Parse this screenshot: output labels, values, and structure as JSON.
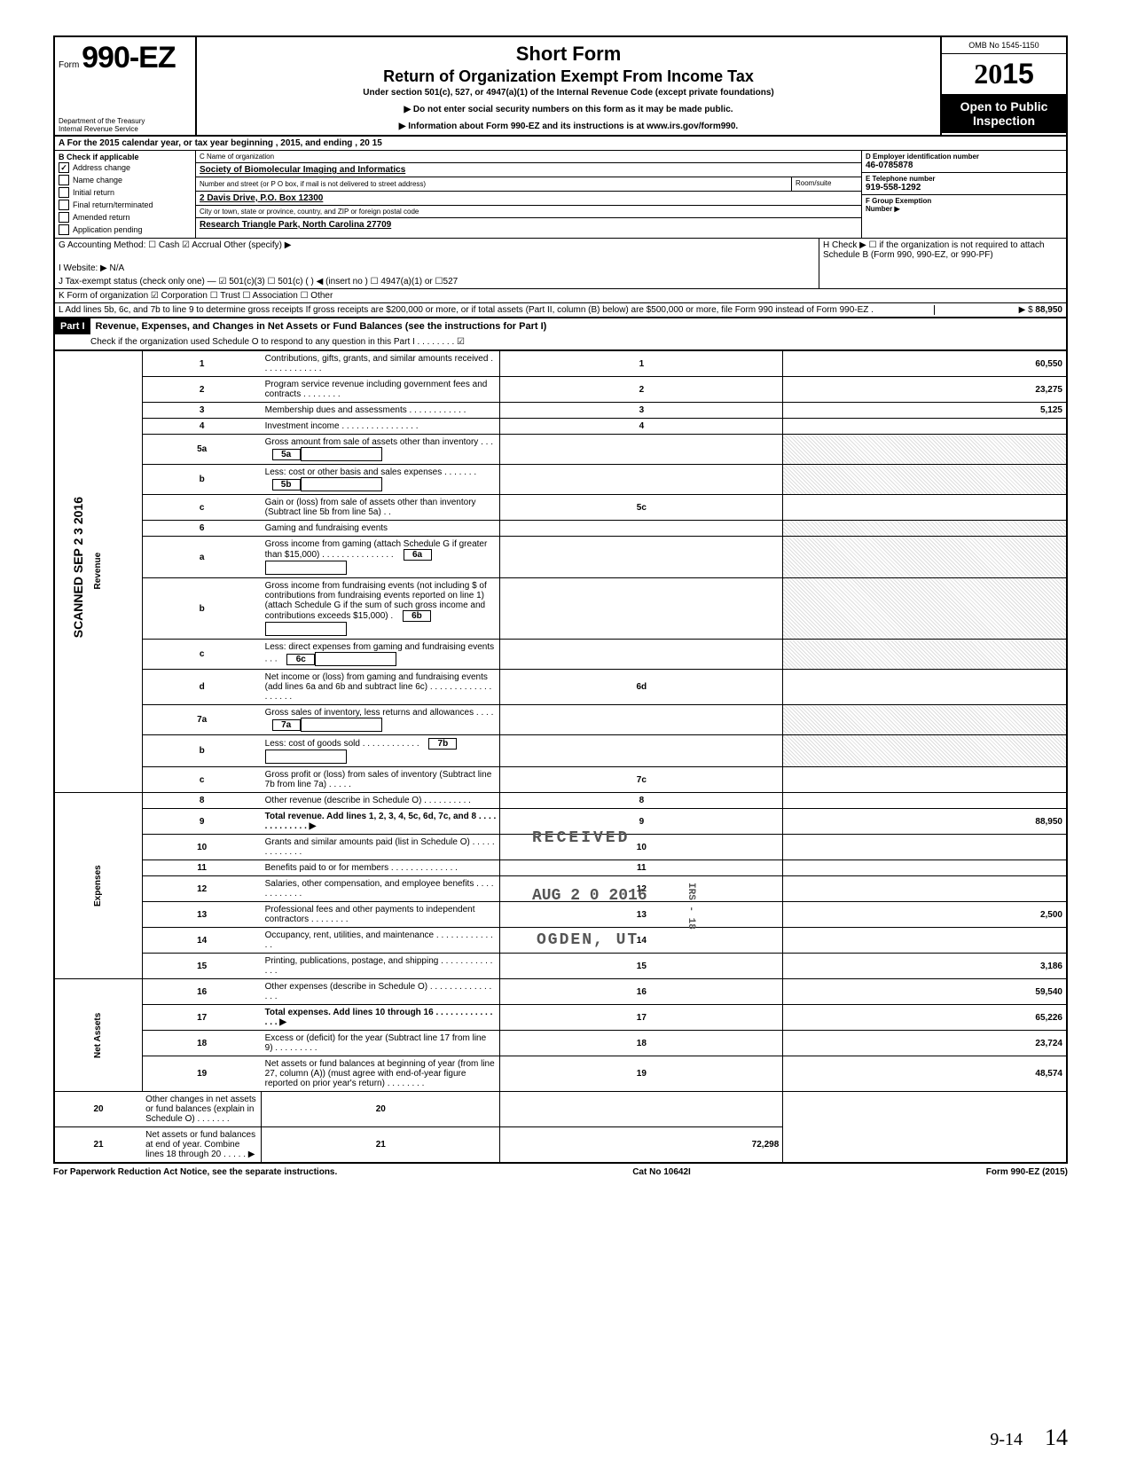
{
  "header": {
    "form_label": "Form",
    "form_number": "990-EZ",
    "dept": "Department of the Treasury\nInternal Revenue Service",
    "title": "Short Form",
    "subtitle": "Return of Organization Exempt From Income Tax",
    "under": "Under section 501(c), 527, or 4947(a)(1) of the Internal Revenue Code (except private foundations)",
    "note1": "▶ Do not enter social security numbers on this form as it may be made public.",
    "note2": "▶ Information about Form 990-EZ and its instructions is at www.irs.gov/form990.",
    "omb": "OMB No 1545-1150",
    "year_prefix": "20",
    "year_suffix": "15",
    "open": "Open to Public Inspection"
  },
  "line_a": "A  For the 2015 calendar year, or tax year beginning                                                          , 2015, and ending                                         , 20    15",
  "box_b": {
    "label": "B  Check if applicable",
    "items": [
      {
        "checked": true,
        "label": "Address change"
      },
      {
        "checked": false,
        "label": "Name change"
      },
      {
        "checked": false,
        "label": "Initial return"
      },
      {
        "checked": false,
        "label": "Final return/terminated"
      },
      {
        "checked": false,
        "label": "Amended return"
      },
      {
        "checked": false,
        "label": "Application pending"
      }
    ]
  },
  "box_c": {
    "label": "C  Name of organization",
    "name": "Society of Biomolecular Imaging and Informatics",
    "addr_label": "Number and street (or P O  box, if mail is not delivered to street address)",
    "addr": "2 Davis Drive, P.O. Box 12300",
    "room_label": "Room/suite",
    "city_label": "City or town, state or province, country, and ZIP or foreign postal code",
    "city": "Research Triangle Park, North Carolina 27709"
  },
  "box_d": {
    "label": "D  Employer identification number",
    "val": "46-0785878"
  },
  "box_e": {
    "label": "E  Telephone number",
    "val": "919-558-1292"
  },
  "box_f": {
    "label": "F  Group Exemption",
    "label2": "Number ▶"
  },
  "row_g": "G  Accounting Method:    ☐ Cash    ☑ Accrual    Other (specify) ▶",
  "row_h": "H  Check ▶ ☐ if the organization is not required to attach Schedule B (Form 990, 990-EZ, or 990-PF)",
  "row_i": "I   Website: ▶      N/A",
  "row_j": "J  Tax-exempt status (check only one) —  ☑ 501(c)(3)   ☐ 501(c) (        ) ◀ (insert no ) ☐ 4947(a)(1) or   ☐527",
  "row_k": "K  Form of organization    ☑ Corporation    ☐ Trust              ☐ Association        ☐ Other",
  "row_l": "L  Add lines 5b, 6c, and 7b to line 9 to determine gross receipts  If gross receipts are $200,000 or more, or if total assets (Part II, column (B) below) are $500,000 or more, file Form 990 instead of Form 990-EZ .",
  "row_l_amt": "88,950",
  "part1_hdr": "Part I",
  "part1_title": "Revenue, Expenses, and Changes in Net Assets or Fund Balances (see the instructions for Part I)",
  "part1_check": "Check if the organization used Schedule O to respond to any question in this Part I  .    .    .    .    .    .    .    .    ☑",
  "side_scanned": "SCANNED SEP 2 3 2016",
  "sections": {
    "revenue": "Revenue",
    "expenses": "Expenses",
    "netassets": "Net Assets"
  },
  "lines": [
    {
      "n": "1",
      "d": "Contributions, gifts, grants, and similar amounts received .   .   .   .   .   .   .   .   .   .   .   .   .",
      "box": "1",
      "amt": "60,550"
    },
    {
      "n": "2",
      "d": "Program service revenue including government fees and contracts     .    .    .    .    .    .    .    .",
      "box": "2",
      "amt": "23,275"
    },
    {
      "n": "3",
      "d": "Membership dues and assessments .   .   .            .    .    .    .                  .    .    .    .    .",
      "box": "3",
      "amt": "5,125"
    },
    {
      "n": "4",
      "d": "Investment income     .    .    .    .    .    .    .    .    .    .    .    .               .    .    .    .",
      "box": "4",
      "amt": ""
    },
    {
      "n": "5a",
      "d": "Gross amount from sale of assets other than inventory     .    .    .",
      "ibox": "5a"
    },
    {
      "n": "b",
      "d": "Less: cost or other basis and sales expenses .   .   .   .       .    .    .",
      "ibox": "5b"
    },
    {
      "n": "c",
      "d": "Gain or (loss) from sale of assets other than inventory (Subtract line 5b from line 5a)   .   .",
      "box": "5c",
      "amt": ""
    },
    {
      "n": "6",
      "d": "Gaming and fundraising events",
      "shade_amt": true
    },
    {
      "n": "a",
      "d": "Gross income from gaming (attach Schedule G if greater than $15,000) .       .   .   .         .   .   .   .   .   .   .   .   .   .   .",
      "ibox": "6a"
    },
    {
      "n": "b",
      "d": "Gross income from fundraising events (not including  $                       of contributions from fundraising events reported on line 1) (attach Schedule G if the sum of such gross income and contributions exceeds $15,000) .",
      "ibox": "6b"
    },
    {
      "n": "c",
      "d": "Less: direct expenses from gaming and fundraising events     .    .    .",
      "ibox": "6c"
    },
    {
      "n": "d",
      "d": "Net income or (loss) from gaming and fundraising events (add lines 6a and 6b and subtract line 6c)    .   .            .   .   .   .   .   .   .   .   .   .   .   .   .   .   .   .   .",
      "box": "6d",
      "amt": ""
    },
    {
      "n": "7a",
      "d": "Gross sales of inventory, less returns and allowances   .   .   .      .",
      "ibox": "7a"
    },
    {
      "n": "b",
      "d": "Less: cost of goods sold        .   .   .   .   .   .   .   .   .   .   .   .",
      "ibox": "7b"
    },
    {
      "n": "c",
      "d": "Gross profit or (loss) from sales of inventory (Subtract line 7b from line 7a)       .   .   .   .   .",
      "box": "7c",
      "amt": ""
    },
    {
      "n": "8",
      "d": "Other revenue (describe in Schedule O)     .         .    .    .    .    .            .    .    .    .",
      "box": "8",
      "amt": ""
    },
    {
      "n": "9",
      "d": "Total revenue. Add lines 1, 2, 3, 4, 5c, 6d, 7c, and 8    .    .    .    .    .    .    .    .    .    .    .    .    . ▶",
      "box": "9",
      "amt": "88,950",
      "bold": true
    },
    {
      "n": "10",
      "d": "Grants and similar amounts paid (list in Schedule O)    .   .   .   .   .   .   .   .   .   .   .   .   .",
      "box": "10",
      "amt": ""
    },
    {
      "n": "11",
      "d": "Benefits paid to or for members   .   .        .    .    .    .          .   .   .   .   .   .   .   .",
      "box": "11",
      "amt": ""
    },
    {
      "n": "12",
      "d": "Salaries, other compensation, and employee benefits   .   .   .   .   .   .   .   .   .   .   .   .",
      "box": "12",
      "amt": ""
    },
    {
      "n": "13",
      "d": "Professional fees and other payments to independent contractors   .   .   .   .   .   .   .   .",
      "box": "13",
      "amt": "2,500"
    },
    {
      "n": "14",
      "d": "Occupancy, rent, utilities, and maintenance     .   .   .   .   .     .   .   .   .   .   .   .   .   .",
      "box": "14",
      "amt": ""
    },
    {
      "n": "15",
      "d": "Printing, publications, postage, and shipping   .   .   .   .   .     .   .   .   .   .   .   .   .   .",
      "box": "15",
      "amt": "3,186"
    },
    {
      "n": "16",
      "d": "Other expenses (describe in Schedule O)   .   .   .   .   .   .   .   .   .   .   .   .   .   .   .   .",
      "box": "16",
      "amt": "59,540"
    },
    {
      "n": "17",
      "d": "Total expenses. Add lines 10 through 16       .    .    .    .    .    .    .    .    .    .    .    .    .    .    .  ▶",
      "box": "17",
      "amt": "65,226",
      "bold": true
    },
    {
      "n": "18",
      "d": "Excess or (deficit) for the year (Subtract line 17 from line 9)    .   .   .        .   .   .   .   .   .",
      "box": "18",
      "amt": "23,724"
    },
    {
      "n": "19",
      "d": "Net assets or fund balances at beginning of year (from line 27, column (A)) (must agree with end-of-year figure reported on prior year's return)    .   .   .       .              .        .    .    .",
      "box": "19",
      "amt": "48,574"
    },
    {
      "n": "20",
      "d": "Other changes in net assets or fund balances (explain in Schedule O) .   .   .   .   .       .    .",
      "box": "20",
      "amt": ""
    },
    {
      "n": "21",
      "d": "Net assets or fund balances at end of year. Combine lines 18 through 20    .   .   .   .      .  ▶",
      "box": "21",
      "amt": "72,298"
    }
  ],
  "stamps": {
    "received": "RECEIVED",
    "date": "AUG 2 0 2016",
    "ogden": "OGDEN, UT",
    "irs": "IRS - 18"
  },
  "footer": {
    "left": "For Paperwork Reduction Act Notice, see the separate instructions.",
    "mid": "Cat  No  10642I",
    "right": "Form 990-EZ (2015)"
  },
  "hand1": "9-14",
  "hand2": "14"
}
